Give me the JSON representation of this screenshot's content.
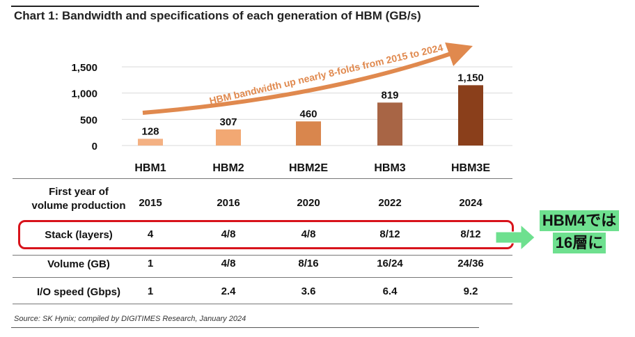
{
  "title": "Chart 1: Bandwidth and specifications of each generation of HBM (GB/s)",
  "chart_data": {
    "type": "bar",
    "categories": [
      "HBM1",
      "HBM2",
      "HBM2E",
      "HBM3",
      "HBM3E"
    ],
    "values": [
      128,
      307,
      460,
      819,
      1150
    ],
    "value_labels": [
      "128",
      "307",
      "460",
      "819",
      "1,150"
    ],
    "ylim": [
      0,
      1500
    ],
    "yticks": [
      0,
      500,
      1000,
      1500
    ],
    "ytick_labels": [
      "0",
      "500",
      "1,000",
      "1,500"
    ],
    "annotation": "HBM bandwidth up nearly 8-folds from 2015 to 2024",
    "bar_colors": [
      "#f4b183",
      "#f2a873",
      "#d9864d",
      "#a86545",
      "#8a3f1b"
    ],
    "arrow_color": "#e0894e",
    "grid": true
  },
  "table": {
    "rows": [
      {
        "label_lines": [
          "First year of",
          "volume production"
        ],
        "values": [
          "2015",
          "2016",
          "2020",
          "2022",
          "2024"
        ]
      },
      {
        "label_lines": [
          "Stack (layers)"
        ],
        "values": [
          "4",
          "4/8",
          "4/8",
          "8/12",
          "8/12"
        ]
      },
      {
        "label_lines": [
          "Volume (GB)"
        ],
        "values": [
          "1",
          "4/8",
          "8/16",
          "16/24",
          "24/36"
        ]
      },
      {
        "label_lines": [
          "I/O speed (Gbps)"
        ],
        "values": [
          "1",
          "2.4",
          "3.6",
          "6.4",
          "9.2"
        ]
      }
    ]
  },
  "source": "Source: SK Hynix; compiled by DIGITIMES Research, January 2024",
  "callout": {
    "line1": "HBM4では",
    "line2": "16層に",
    "color": "#6ee08f"
  },
  "highlight_color": "#d8131b"
}
